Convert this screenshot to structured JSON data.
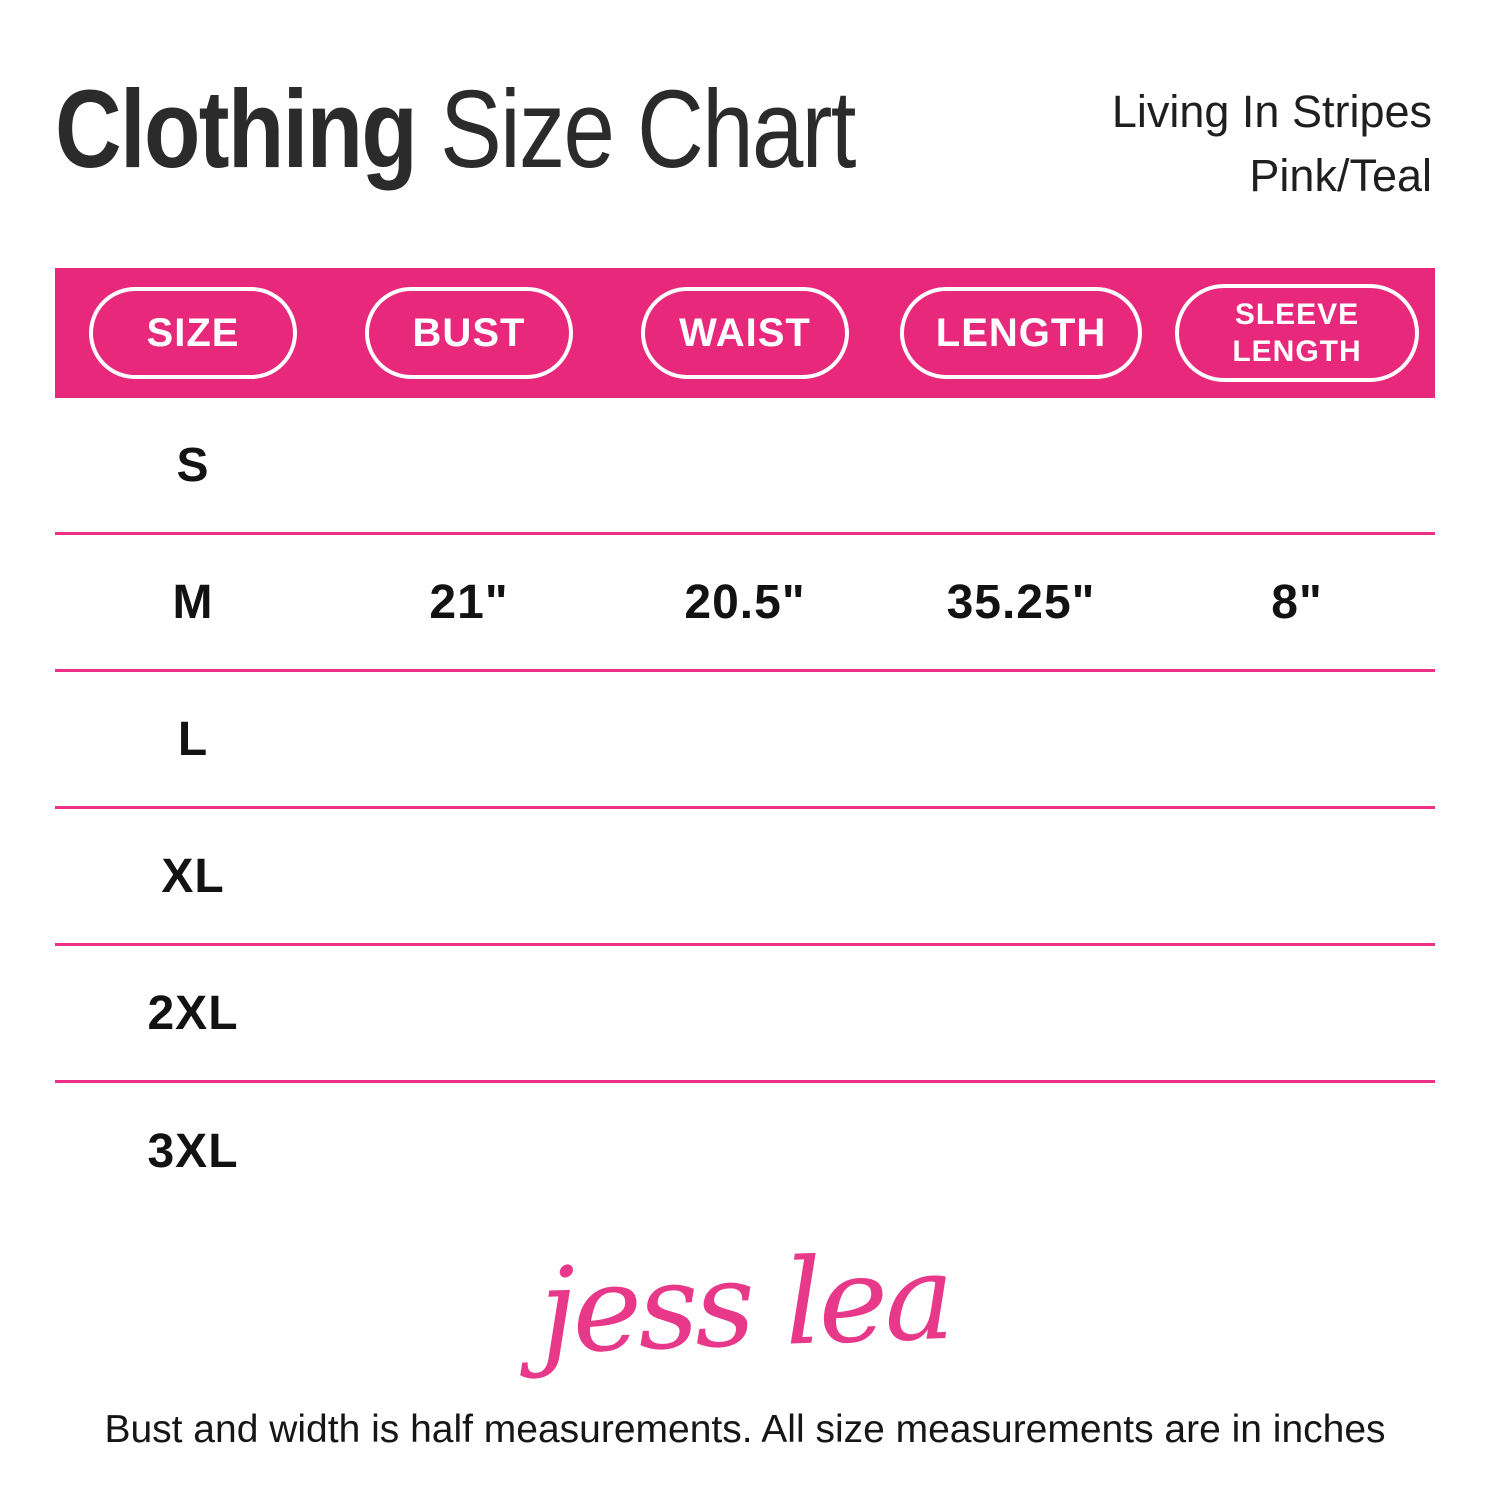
{
  "page": {
    "title_bold": "Clothing",
    "title_rest": " Size Chart",
    "product_name_line1": "Living In Stripes",
    "product_name_line2": "Pink/Teal",
    "brand_logo_text": "jess lea",
    "footnote": "Bust and width is half measurements. All size measurements are in inches"
  },
  "chart_data": {
    "type": "table",
    "title": "Clothing Size Chart",
    "columns": [
      "SIZE",
      "BUST",
      "WAIST",
      "LENGTH",
      "SLEEVE LENGTH"
    ],
    "rows": [
      [
        "S",
        "",
        "",
        "",
        ""
      ],
      [
        "M",
        "21\"",
        "20.5\"",
        "35.25\"",
        "8\""
      ],
      [
        "L",
        "",
        "",
        "",
        ""
      ],
      [
        "XL",
        "",
        "",
        "",
        ""
      ],
      [
        "2XL",
        "",
        "",
        "",
        ""
      ],
      [
        "3XL",
        "",
        "",
        "",
        ""
      ]
    ],
    "layout_hints": {
      "header_style": "pink bar with white outlined pill labels",
      "row_separators": "thin pink lines",
      "only_populated_row": "M"
    }
  },
  "colors": {
    "header_bar_pink": "#e7287b",
    "separator_pink": "#ee2f86",
    "pill_border": "#ffffff",
    "pill_text": "#ffffff",
    "title_dark": "#2b2b2b",
    "cell_text": "#121212",
    "logo_pink": "#e8388a"
  }
}
